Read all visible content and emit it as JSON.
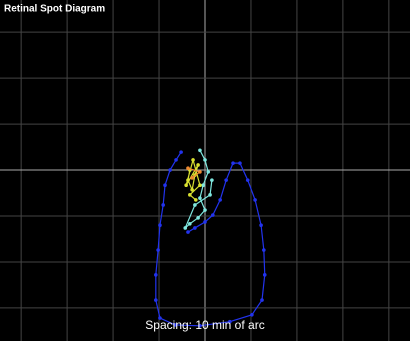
{
  "chart_data": {
    "type": "line",
    "title": "Retinal Spot Diagram",
    "annotation": "Spacing:  10 min of arc",
    "xlim": [
      -44.6,
      44.6
    ],
    "ylim": [
      -37.2,
      37
    ],
    "xticks": [
      -40,
      -30,
      -20,
      -10,
      0,
      10,
      20,
      30,
      40
    ],
    "yticks": [
      -30,
      -20,
      -10,
      0,
      10,
      20,
      30
    ],
    "grid": true,
    "series": [
      {
        "color": "#2233ee",
        "x": [
          -5.2,
          -6.3,
          -7.6,
          -8.7,
          -9.1,
          -9.8,
          -10.2,
          -10.7,
          -10.7,
          -9.8,
          -6.5,
          -1.1,
          5.4,
          10.2,
          12.4,
          13.0,
          12.8,
          12.2,
          10.9,
          9.3,
          7.6,
          6.1,
          4.6,
          3.3,
          1.7,
          0,
          -2.2,
          -3.7
        ],
        "values": [
          3.9,
          2.2,
          0,
          -3.3,
          -7.6,
          -12.0,
          -17.4,
          -22.8,
          -28.3,
          -32.2,
          -33.7,
          -33.9,
          -33.0,
          -31.5,
          -28.3,
          -22.8,
          -17.4,
          -12.0,
          -6.5,
          -2.2,
          1.5,
          1.5,
          -2.2,
          -6.5,
          -9.8,
          -11.3,
          -12.6,
          -13.5
        ]
      },
      {
        "color": "#7fe8e0",
        "x": [
          -1.1,
          0,
          0.7,
          -0.4,
          -1.1,
          0,
          -1.5,
          -3.3,
          -4.3,
          -2.2,
          1.1,
          1.5
        ],
        "values": [
          4.3,
          2.2,
          -0.4,
          -3.3,
          -6.1,
          -8.7,
          -10.4,
          -11.7,
          -12.6,
          -7.6,
          -5.4,
          -2.2
        ]
      },
      {
        "color": "#d8e030",
        "x": [
          -3.3,
          -3.7,
          -2.8,
          -2.2,
          -1.5,
          -4.1,
          -2.6,
          -1.1,
          -3.3,
          -2.0
        ],
        "values": [
          0,
          -2.2,
          -4.3,
          -1.1,
          1.1,
          -3.3,
          2.2,
          -3.3,
          -5.4,
          -6.5
        ]
      },
      {
        "color": "#f08a30",
        "x": [
          -2.8,
          -1.1,
          -3.7
        ],
        "values": [
          -1.7,
          -0.4,
          0.4
        ]
      }
    ]
  }
}
